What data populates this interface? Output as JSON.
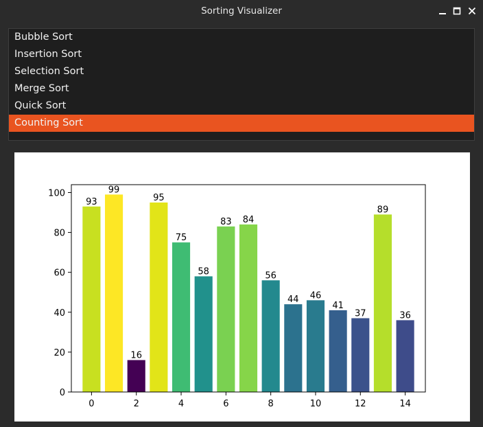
{
  "window": {
    "title": "Sorting Visualizer",
    "controls": [
      "minimize-icon",
      "maximize-icon",
      "close-icon"
    ]
  },
  "algorithm_list": {
    "items": [
      "Bubble Sort",
      "Insertion Sort",
      "Selection Sort",
      "Merge Sort",
      "Quick Sort",
      "Counting Sort"
    ],
    "selected": "Counting Sort",
    "selected_color": "#e95420"
  },
  "chart_data": {
    "type": "bar",
    "x": [
      0,
      1,
      2,
      3,
      4,
      5,
      6,
      7,
      8,
      9,
      10,
      11,
      12,
      13,
      14
    ],
    "values": [
      93,
      99,
      16,
      95,
      75,
      58,
      83,
      84,
      56,
      44,
      46,
      41,
      37,
      89,
      36
    ],
    "data_labels": [
      "93",
      "99",
      "16",
      "95",
      "75",
      "58",
      "83",
      "84",
      "56",
      "44",
      "46",
      "41",
      "37",
      "89",
      "36"
    ],
    "colors": [
      "#c8e020",
      "#fde725",
      "#440154",
      "#e2e418",
      "#3fbc73",
      "#21918c",
      "#7ad151",
      "#86d549",
      "#23898e",
      "#2c728e",
      "#297b8e",
      "#355f8d",
      "#3b528b",
      "#b5de2b",
      "#3e4c8a"
    ],
    "title": "",
    "xlabel": "",
    "ylabel": "",
    "xlim": [
      -0.9,
      14.9
    ],
    "ylim": [
      0,
      103.95
    ],
    "xticks": [
      0,
      2,
      4,
      6,
      8,
      10,
      12,
      14
    ],
    "xtick_labels": [
      "0",
      "2",
      "4",
      "6",
      "8",
      "10",
      "12",
      "14"
    ],
    "yticks": [
      0,
      20,
      40,
      60,
      80,
      100
    ],
    "ytick_labels": [
      "0",
      "20",
      "40",
      "60",
      "80",
      "100"
    ],
    "grid": false,
    "legend": "none"
  }
}
